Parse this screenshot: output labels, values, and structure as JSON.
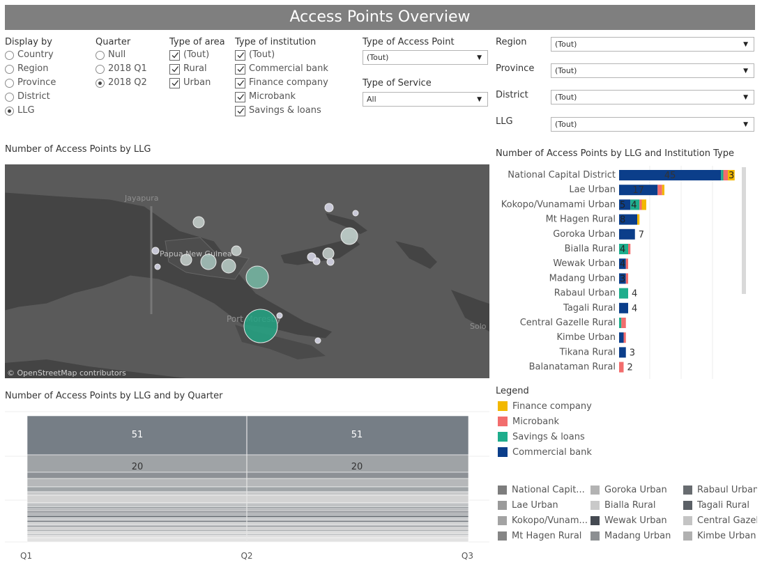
{
  "title": "Access Points Overview",
  "filters": {
    "display_by": {
      "label": "Display by",
      "options": [
        "Country",
        "Region",
        "Province",
        "District",
        "LLG"
      ],
      "selected": "LLG"
    },
    "quarter": {
      "label": "Quarter",
      "options": [
        "Null",
        "2018 Q1",
        "2018 Q2"
      ],
      "selected": "2018 Q2"
    },
    "type_of_area": {
      "label": "Type of area",
      "options": [
        "(Tout)",
        "Rural",
        "Urban"
      ]
    },
    "type_of_institution": {
      "label": "Type of institution",
      "options": [
        "(Tout)",
        "Commercial bank",
        "Finance company",
        "Microbank",
        "Savings & loans"
      ]
    },
    "type_of_access_point": {
      "label": "Type of Access Point",
      "value": "(Tout)"
    },
    "type_of_service": {
      "label": "Type of Service",
      "value": "All"
    },
    "region": {
      "label": "Region",
      "value": "(Tout)"
    },
    "province": {
      "label": "Province",
      "value": "(Tout)"
    },
    "district": {
      "label": "District",
      "value": "(Tout)"
    },
    "llg": {
      "label": "LLG",
      "value": "(Tout)"
    }
  },
  "map": {
    "title": "Number of Access Points by LLG",
    "attribution": "© OpenStreetMap contributors",
    "place_labels": [
      "Jayapura",
      "Papua New Guinea",
      "Port Moresby",
      "Solo Isla"
    ]
  },
  "llg_bar_chart": {
    "title": "Number of Access Points by LLG and Institution Type"
  },
  "legend": {
    "title": "Legend",
    "items": [
      {
        "label": "Finance company",
        "color": "#f2b800"
      },
      {
        "label": "Microbank",
        "color": "#f26d6d"
      },
      {
        "label": "Savings & loans",
        "color": "#1ead8c"
      },
      {
        "label": "Commercial bank",
        "color": "#0b3e8a"
      }
    ]
  },
  "quarter_chart": {
    "title": "Number of Access Points by LLG  and by Quarter"
  },
  "llg_legend": [
    {
      "label": "National Capit...",
      "color": "#7d7d7d"
    },
    {
      "label": "Goroka Urban",
      "color": "#b3b3b3"
    },
    {
      "label": "Rabaul Urban",
      "color": "#686c70"
    },
    {
      "label": "Lae Urban",
      "color": "#9a9a9a"
    },
    {
      "label": "Bialla Rural",
      "color": "#c9c9c9"
    },
    {
      "label": "Tagali Rural",
      "color": "#5b6066"
    },
    {
      "label": "Kokopo/Vunam...",
      "color": "#a3a3a3"
    },
    {
      "label": "Wewak Urban",
      "color": "#454a52"
    },
    {
      "label": "Central Gazel",
      "color": "#c4c4c4"
    },
    {
      "label": "Mt Hagen Rural",
      "color": "#858585"
    },
    {
      "label": "Madang Urban",
      "color": "#8c8f92"
    },
    {
      "label": "Kimbe Urban",
      "color": "#b0b0b0"
    }
  ],
  "chart_data": [
    {
      "type": "bar",
      "title": "Number of Access Points by LLG and Institution Type",
      "orientation": "horizontal",
      "stacked": true,
      "categories": [
        "National Capital District",
        "Lae Urban",
        "Kokopo/Vunamami Urban",
        "Mt Hagen Rural",
        "Goroka Urban",
        "Bialla Rural",
        "Wewak Urban",
        "Madang Urban",
        "Rabaul Urban",
        "Tagali Rural",
        "Central Gazelle Rural",
        "Kimbe Urban",
        "Tikana Rural",
        "Balanataman Rural"
      ],
      "series": [
        {
          "name": "Commercial bank",
          "values": [
            45,
            17,
            5,
            8,
            7,
            0,
            3,
            3,
            0,
            4,
            0,
            2,
            3,
            0
          ]
        },
        {
          "name": "Savings & loans",
          "values": [
            1,
            0,
            4,
            0,
            0,
            4,
            0,
            0,
            4,
            0,
            1,
            0,
            0,
            0
          ]
        },
        {
          "name": "Microbank",
          "values": [
            2,
            2,
            1,
            0,
            0,
            1,
            1,
            1,
            0,
            0,
            2,
            1,
            0,
            2
          ]
        },
        {
          "name": "Finance company",
          "values": [
            3,
            1,
            2,
            1,
            0,
            0,
            0,
            0,
            0,
            0,
            0,
            0,
            0,
            0
          ]
        }
      ],
      "data_labels": [
        "45",
        "3",
        "17",
        "5",
        "4",
        "8",
        "7",
        "4",
        "3",
        "4",
        "4",
        "3",
        "2"
      ]
    },
    {
      "type": "area",
      "title": "Number of Access Points by LLG  and by Quarter",
      "stacked": true,
      "x": [
        "Q1",
        "Q2",
        "Q3"
      ],
      "series_top_values": [
        51,
        20
      ],
      "value_labels": [
        {
          "quarter": "Q1",
          "values": [
            "51",
            "20"
          ]
        },
        {
          "quarter": "Q2",
          "values": [
            "51",
            "20"
          ]
        }
      ]
    },
    {
      "type": "scatter",
      "title": "Number of Access Points by LLG",
      "encoding": "bubble size = number of access points"
    }
  ]
}
